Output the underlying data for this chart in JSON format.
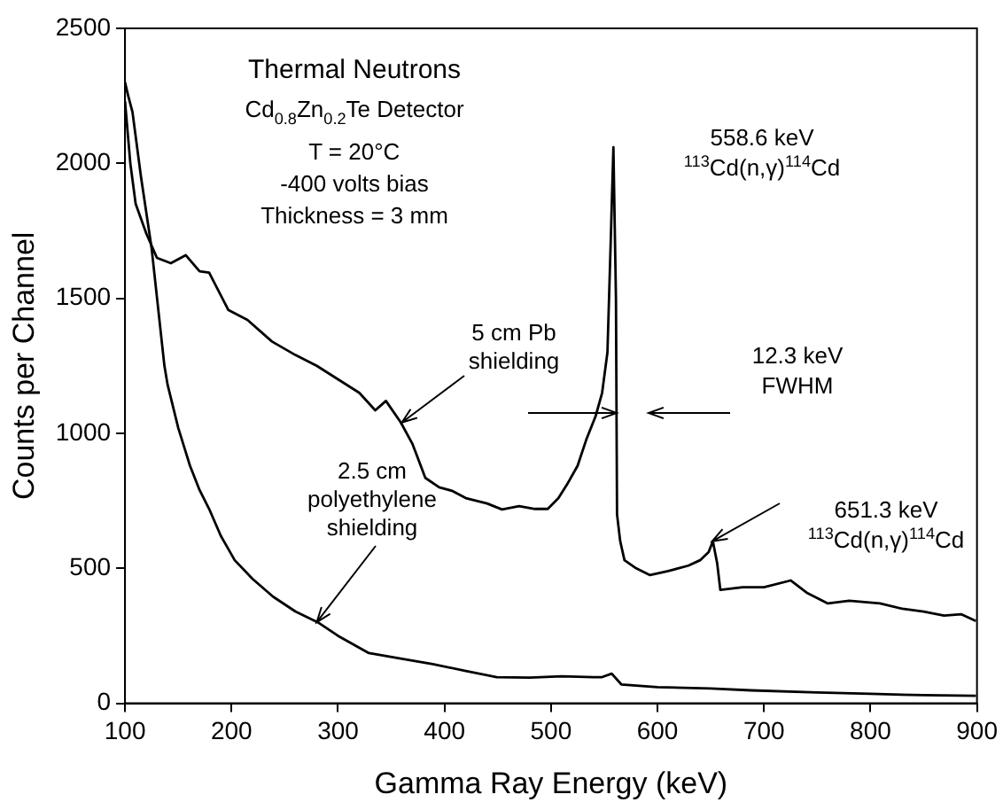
{
  "chart_data": {
    "type": "line",
    "xlabel": "Gamma Ray Energy (keV)",
    "ylabel": "Counts per Channel",
    "xlim": [
      100,
      900
    ],
    "xticks": [
      100,
      200,
      300,
      400,
      500,
      600,
      700,
      800,
      900
    ],
    "ylim": [
      0,
      2500
    ],
    "yticks": [
      0,
      500,
      1000,
      1500,
      2000,
      2500
    ],
    "grid": false,
    "legend": false,
    "marker": "none",
    "line_style": "solid",
    "series": [
      {
        "color": "#000000",
        "x": [
          100,
          105,
          110,
          120,
          130,
          143,
          157,
          170,
          179,
          197,
          215,
          238,
          260,
          280,
          300,
          320,
          335,
          345,
          359,
          370,
          382,
          395,
          407,
          420,
          440,
          454,
          470,
          485,
          497,
          507,
          515,
          525,
          533,
          542,
          548,
          553,
          556,
          558.6,
          561,
          562,
          565,
          569,
          580,
          593,
          610,
          629,
          640,
          648,
          652,
          656,
          659,
          680,
          700,
          725,
          740,
          760,
          780,
          809,
          830,
          850,
          869,
          885,
          899
        ],
        "values": [
          2230,
          2000,
          1850,
          1740,
          1650,
          1630,
          1660,
          1600,
          1595,
          1457,
          1420,
          1340,
          1290,
          1250,
          1200,
          1150,
          1085,
          1120,
          1040,
          960,
          835,
          800,
          787,
          760,
          740,
          718,
          730,
          720,
          720,
          760,
          810,
          880,
          975,
          1065,
          1150,
          1300,
          1700,
          2060,
          1500,
          700,
          600,
          530,
          500,
          475,
          490,
          510,
          530,
          560,
          600,
          520,
          420,
          430,
          430,
          455,
          410,
          370,
          380,
          370,
          350,
          340,
          325,
          330,
          305
        ]
      },
      {
        "color": "#000000",
        "x": [
          100,
          103,
          107,
          115,
          125,
          137,
          140,
          150,
          161,
          170,
          179,
          190,
          203,
          220,
          239,
          260,
          281,
          300,
          329,
          360,
          389,
          420,
          449,
          480,
          510,
          540,
          548,
          557,
          566,
          600,
          650,
          688,
          750,
          800,
          850,
          899
        ],
        "values": [
          2300,
          2250,
          2190,
          1950,
          1685,
          1250,
          1180,
          1020,
          880,
          790,
          720,
          620,
          530,
          460,
          395,
          340,
          300,
          250,
          186,
          165,
          145,
          120,
          97,
          95,
          100,
          97,
          97,
          110,
          70,
          60,
          55,
          48,
          40,
          35,
          30,
          28
        ]
      }
    ],
    "annotations": [
      "Thermal Neutrons",
      "Cd$_{0.8}$Zn$_{0.2}$Te Detector",
      "T = 20°C",
      "-400 volts bias",
      "Thickness = 3 mm",
      "558.6 keV\n$^{113}$Cd(n,γ)$^{114}$Cd",
      "12.3 keV\nFWHM",
      {
        "text": "651.3 keV\n$^{113}$Cd(n,γ)$^{114}$Cd",
        "x": 651.3,
        "y": 600
      },
      {
        "text": "5 cm Pb\nshielding",
        "x": 360,
        "y": 1040
      },
      {
        "text": "2.5 cm\npolyethylene\nshielding",
        "x": 280,
        "y": 300
      }
    ]
  }
}
